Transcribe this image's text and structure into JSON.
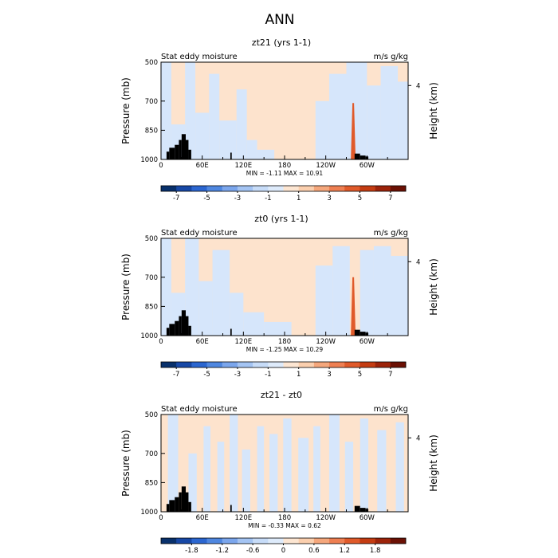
{
  "figure_title": "ANN",
  "colors": {
    "land": "#000000",
    "frame": "#000000",
    "blue_light": "#d6e6fb",
    "orange_light": "#fde3cd",
    "spike": "#e05a2a"
  },
  "chart_data": [
    {
      "type": "heatmap",
      "title": "zt21 (yrs 1-1)",
      "left_label": "Stat eddy moisture",
      "right_label": "m/s g/kg",
      "ylabel": "Pressure (mb)",
      "ylabel_right": "Height (km)",
      "x_ticks": [
        "0",
        "60E",
        "120E",
        "180",
        "120W",
        "60W"
      ],
      "x_tick_values": [
        0,
        60,
        120,
        180,
        240,
        300
      ],
      "xlim": [
        0,
        360
      ],
      "y_ticks": [
        "500",
        "700",
        "850",
        "1000"
      ],
      "y_tick_values": [
        500,
        700,
        850,
        1000
      ],
      "ylim": [
        1000,
        500
      ],
      "height_ticks": [
        "4"
      ],
      "height_tick_values": [
        4
      ],
      "stats": "MIN = -1.11 MAX = 10.91",
      "min": -1.11,
      "max": 10.91,
      "colorbar": {
        "levels": [
          -8,
          -7,
          -6,
          -5,
          -4,
          -3,
          -2,
          -1,
          0,
          1,
          2,
          3,
          4,
          5,
          6,
          7,
          8
        ],
        "labels": [
          "-7",
          "-5",
          "-3",
          "-1",
          "1",
          "3",
          "5",
          "7"
        ],
        "label_positions": [
          1,
          3,
          5,
          7,
          9,
          11,
          13,
          15
        ],
        "colors": [
          "#08306b",
          "#1748a6",
          "#2b66d0",
          "#4f87e0",
          "#7ba6ec",
          "#a4c4f3",
          "#c7dcf8",
          "#deebfb",
          "#fde6d2",
          "#fbcfae",
          "#f5a77c",
          "#ee7f52",
          "#e05a2a",
          "#c43c12",
          "#9c230a",
          "#6b1004"
        ]
      },
      "zones": [
        {
          "x0": 0,
          "x1": 15,
          "p": 500,
          "sign": "neg"
        },
        {
          "x0": 15,
          "x1": 35,
          "p": 820,
          "sign": "neg"
        },
        {
          "x0": 35,
          "x1": 50,
          "p": 500,
          "sign": "neg"
        },
        {
          "x0": 50,
          "x1": 70,
          "p": 760,
          "sign": "neg"
        },
        {
          "x0": 70,
          "x1": 85,
          "p": 560,
          "sign": "neg"
        },
        {
          "x0": 85,
          "x1": 110,
          "p": 800,
          "sign": "neg"
        },
        {
          "x0": 110,
          "x1": 125,
          "p": 640,
          "sign": "neg"
        },
        {
          "x0": 125,
          "x1": 140,
          "p": 900,
          "sign": "neg"
        },
        {
          "x0": 140,
          "x1": 165,
          "p": 950,
          "sign": "neg"
        },
        {
          "x0": 225,
          "x1": 245,
          "p": 700,
          "sign": "neg"
        },
        {
          "x0": 245,
          "x1": 270,
          "p": 560,
          "sign": "neg"
        },
        {
          "x0": 270,
          "x1": 300,
          "p": 500,
          "sign": "neg"
        },
        {
          "x0": 300,
          "x1": 320,
          "p": 620,
          "sign": "neg"
        },
        {
          "x0": 320,
          "x1": 345,
          "p": 520,
          "sign": "neg"
        },
        {
          "x0": 345,
          "x1": 360,
          "p": 600,
          "sign": "neg"
        }
      ],
      "spike": {
        "x": 280,
        "p_top": 710,
        "value": 10.91
      },
      "land": [
        {
          "x0": 8,
          "x1": 12,
          "p": 960
        },
        {
          "x0": 12,
          "x1": 20,
          "p": 940
        },
        {
          "x0": 20,
          "x1": 26,
          "p": 925
        },
        {
          "x0": 26,
          "x1": 30,
          "p": 900
        },
        {
          "x0": 30,
          "x1": 36,
          "p": 870
        },
        {
          "x0": 36,
          "x1": 40,
          "p": 900
        },
        {
          "x0": 40,
          "x1": 44,
          "p": 950
        },
        {
          "x0": 101,
          "x1": 103,
          "p": 965
        },
        {
          "x0": 282,
          "x1": 290,
          "p": 970
        },
        {
          "x0": 290,
          "x1": 298,
          "p": 980
        },
        {
          "x0": 298,
          "x1": 302,
          "p": 985
        }
      ]
    },
    {
      "type": "heatmap",
      "title": "zt0 (yrs 1-1)",
      "left_label": "Stat eddy moisture",
      "right_label": "m/s g/kg",
      "ylabel": "Pressure (mb)",
      "ylabel_right": "Height (km)",
      "x_ticks": [
        "0",
        "60E",
        "120E",
        "180",
        "120W",
        "60W"
      ],
      "x_tick_values": [
        0,
        60,
        120,
        180,
        240,
        300
      ],
      "xlim": [
        0,
        360
      ],
      "y_ticks": [
        "500",
        "700",
        "850",
        "1000"
      ],
      "y_tick_values": [
        500,
        700,
        850,
        1000
      ],
      "ylim": [
        1000,
        500
      ],
      "height_ticks": [
        "4"
      ],
      "height_tick_values": [
        4
      ],
      "stats": "MIN = -1.25 MAX = 10.29",
      "min": -1.25,
      "max": 10.29,
      "colorbar": {
        "levels": [
          -8,
          -7,
          -6,
          -5,
          -4,
          -3,
          -2,
          -1,
          0,
          1,
          2,
          3,
          4,
          5,
          6,
          7,
          8
        ],
        "labels": [
          "-7",
          "-5",
          "-3",
          "-1",
          "1",
          "3",
          "5",
          "7"
        ],
        "label_positions": [
          1,
          3,
          5,
          7,
          9,
          11,
          13,
          15
        ],
        "colors": [
          "#08306b",
          "#1748a6",
          "#2b66d0",
          "#4f87e0",
          "#7ba6ec",
          "#a4c4f3",
          "#c7dcf8",
          "#deebfb",
          "#fde6d2",
          "#fbcfae",
          "#f5a77c",
          "#ee7f52",
          "#e05a2a",
          "#c43c12",
          "#9c230a",
          "#6b1004"
        ]
      },
      "zones": [
        {
          "x0": 0,
          "x1": 15,
          "p": 500,
          "sign": "neg"
        },
        {
          "x0": 15,
          "x1": 35,
          "p": 780,
          "sign": "neg"
        },
        {
          "x0": 35,
          "x1": 55,
          "p": 500,
          "sign": "neg"
        },
        {
          "x0": 55,
          "x1": 75,
          "p": 720,
          "sign": "neg"
        },
        {
          "x0": 75,
          "x1": 100,
          "p": 560,
          "sign": "neg"
        },
        {
          "x0": 100,
          "x1": 120,
          "p": 780,
          "sign": "neg"
        },
        {
          "x0": 120,
          "x1": 150,
          "p": 880,
          "sign": "neg"
        },
        {
          "x0": 150,
          "x1": 190,
          "p": 930,
          "sign": "neg"
        },
        {
          "x0": 225,
          "x1": 250,
          "p": 640,
          "sign": "neg"
        },
        {
          "x0": 250,
          "x1": 275,
          "p": 540,
          "sign": "neg"
        },
        {
          "x0": 290,
          "x1": 310,
          "p": 560,
          "sign": "neg"
        },
        {
          "x0": 310,
          "x1": 335,
          "p": 540,
          "sign": "neg"
        },
        {
          "x0": 335,
          "x1": 360,
          "p": 590,
          "sign": "neg"
        }
      ],
      "spike": {
        "x": 280,
        "p_top": 700,
        "value": 10.29
      },
      "land": [
        {
          "x0": 8,
          "x1": 12,
          "p": 960
        },
        {
          "x0": 12,
          "x1": 20,
          "p": 940
        },
        {
          "x0": 20,
          "x1": 26,
          "p": 925
        },
        {
          "x0": 26,
          "x1": 30,
          "p": 900
        },
        {
          "x0": 30,
          "x1": 36,
          "p": 870
        },
        {
          "x0": 36,
          "x1": 40,
          "p": 900
        },
        {
          "x0": 40,
          "x1": 44,
          "p": 950
        },
        {
          "x0": 101,
          "x1": 103,
          "p": 965
        },
        {
          "x0": 282,
          "x1": 290,
          "p": 970
        },
        {
          "x0": 290,
          "x1": 298,
          "p": 980
        },
        {
          "x0": 298,
          "x1": 302,
          "p": 985
        }
      ]
    },
    {
      "type": "heatmap",
      "title": "zt21 - zt0",
      "left_label": "Stat eddy moisture",
      "right_label": "m/s g/kg",
      "ylabel": "Pressure (mb)",
      "ylabel_right": "Height (km)",
      "x_ticks": [
        "0",
        "60E",
        "120E",
        "180",
        "120W",
        "60W"
      ],
      "x_tick_values": [
        0,
        60,
        120,
        180,
        240,
        300
      ],
      "xlim": [
        0,
        360
      ],
      "y_ticks": [
        "500",
        "700",
        "850",
        "1000"
      ],
      "y_tick_values": [
        500,
        700,
        850,
        1000
      ],
      "ylim": [
        1000,
        500
      ],
      "height_ticks": [
        "4"
      ],
      "height_tick_values": [
        4
      ],
      "stats": "MIN = -0.33 MAX = 0.62",
      "min": -0.33,
      "max": 0.62,
      "colorbar": {
        "levels": [
          -2.4,
          -2.1,
          -1.8,
          -1.5,
          -1.2,
          -0.9,
          -0.6,
          -0.3,
          0,
          0.3,
          0.6,
          0.9,
          1.2,
          1.5,
          1.8,
          2.1,
          2.4
        ],
        "labels": [
          "-1.8",
          "-1.2",
          "-0.6",
          "0",
          "0.6",
          "1.2",
          "1.8"
        ],
        "label_positions": [
          2,
          4,
          6,
          8,
          10,
          12,
          14
        ],
        "colors": [
          "#08306b",
          "#1748a6",
          "#2b66d0",
          "#4f87e0",
          "#7ba6ec",
          "#a4c4f3",
          "#c7dcf8",
          "#deebfb",
          "#fde6d2",
          "#fbcfae",
          "#f5a77c",
          "#ee7f52",
          "#e05a2a",
          "#c43c12",
          "#9c230a",
          "#6b1004"
        ]
      },
      "zones": [
        {
          "x0": 10,
          "x1": 25,
          "p": 500,
          "sign": "neg"
        },
        {
          "x0": 40,
          "x1": 52,
          "p": 700,
          "sign": "neg"
        },
        {
          "x0": 62,
          "x1": 72,
          "p": 560,
          "sign": "neg"
        },
        {
          "x0": 82,
          "x1": 92,
          "p": 640,
          "sign": "neg"
        },
        {
          "x0": 100,
          "x1": 112,
          "p": 500,
          "sign": "neg"
        },
        {
          "x0": 118,
          "x1": 130,
          "p": 680,
          "sign": "neg"
        },
        {
          "x0": 140,
          "x1": 150,
          "p": 560,
          "sign": "neg"
        },
        {
          "x0": 158,
          "x1": 170,
          "p": 600,
          "sign": "neg"
        },
        {
          "x0": 178,
          "x1": 190,
          "p": 520,
          "sign": "neg"
        },
        {
          "x0": 200,
          "x1": 215,
          "p": 620,
          "sign": "neg"
        },
        {
          "x0": 222,
          "x1": 232,
          "p": 560,
          "sign": "neg"
        },
        {
          "x0": 245,
          "x1": 260,
          "p": 500,
          "sign": "neg"
        },
        {
          "x0": 268,
          "x1": 280,
          "p": 640,
          "sign": "neg"
        },
        {
          "x0": 290,
          "x1": 302,
          "p": 520,
          "sign": "neg"
        },
        {
          "x0": 315,
          "x1": 328,
          "p": 580,
          "sign": "neg"
        },
        {
          "x0": 342,
          "x1": 354,
          "p": 540,
          "sign": "neg"
        }
      ],
      "spike": null,
      "land": [
        {
          "x0": 8,
          "x1": 12,
          "p": 960
        },
        {
          "x0": 12,
          "x1": 20,
          "p": 940
        },
        {
          "x0": 20,
          "x1": 26,
          "p": 925
        },
        {
          "x0": 26,
          "x1": 30,
          "p": 900
        },
        {
          "x0": 30,
          "x1": 36,
          "p": 870
        },
        {
          "x0": 36,
          "x1": 40,
          "p": 900
        },
        {
          "x0": 40,
          "x1": 44,
          "p": 950
        },
        {
          "x0": 101,
          "x1": 103,
          "p": 965
        },
        {
          "x0": 282,
          "x1": 290,
          "p": 970
        },
        {
          "x0": 290,
          "x1": 298,
          "p": 980
        },
        {
          "x0": 298,
          "x1": 302,
          "p": 985
        }
      ]
    }
  ]
}
